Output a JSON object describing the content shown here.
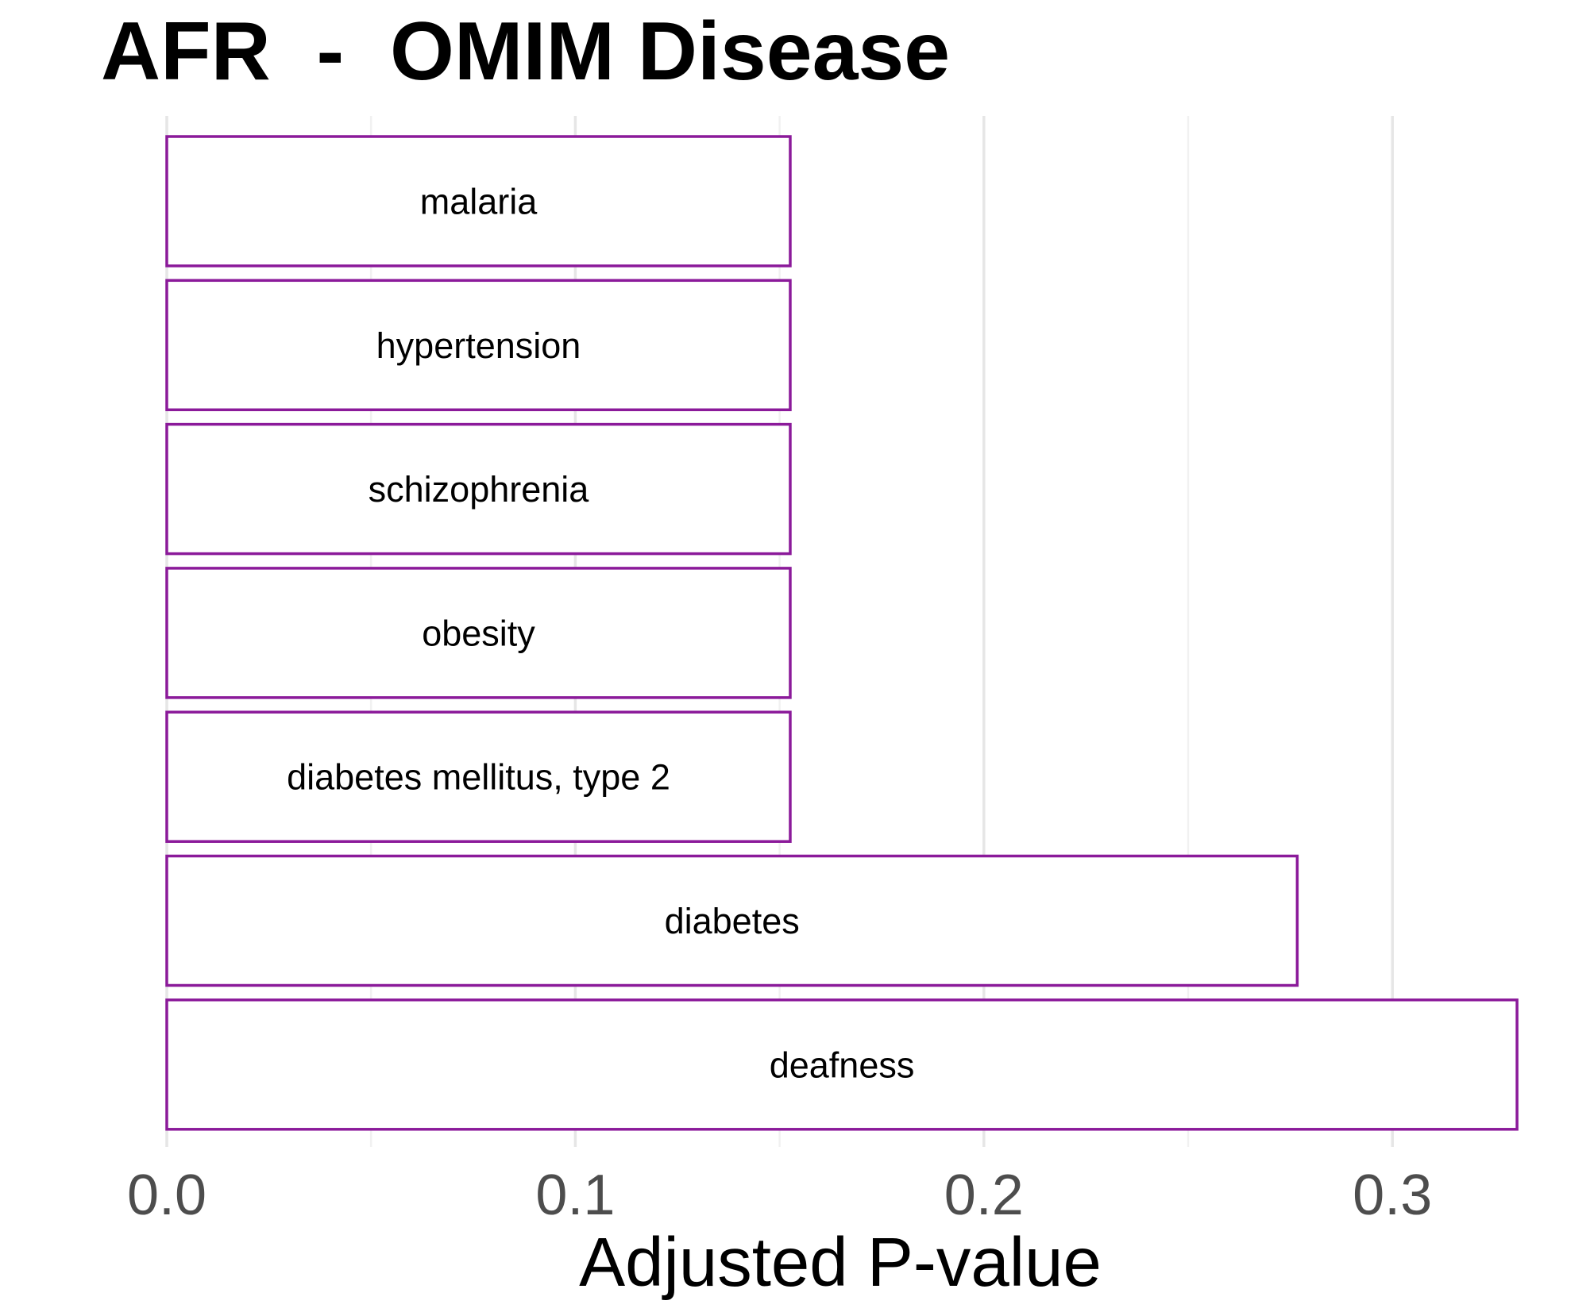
{
  "chart_data": {
    "type": "bar",
    "orientation": "horizontal",
    "title": "AFR  -  OMIM Disease",
    "xlabel": "Adjusted P-value",
    "ylabel": "",
    "xlim": [
      0,
      0.33
    ],
    "x_ticks": [
      0.0,
      0.1,
      0.2,
      0.3
    ],
    "x_tick_labels": [
      "0.0",
      "0.1",
      "0.2",
      "0.3"
    ],
    "grid": "vertical",
    "legend": "none",
    "categories": [
      "malaria",
      "hypertension",
      "schizophrenia",
      "obesity",
      "diabetes mellitus, type 2",
      "diabetes",
      "deafness"
    ],
    "values": [
      0.1526,
      0.1526,
      0.1526,
      0.1526,
      0.1526,
      0.2767,
      0.3305
    ],
    "colors": {
      "bar_outline": "#8b1a9a",
      "bar_fill": "#ffffff",
      "grid": "#e6e6e6",
      "tick_text": "#4d4d4d"
    }
  }
}
